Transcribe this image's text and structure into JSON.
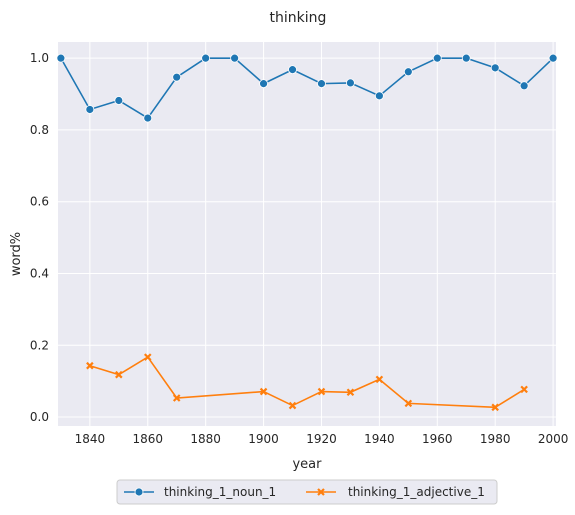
{
  "chart_data": {
    "type": "line",
    "title": "thinking",
    "xlabel": "year",
    "ylabel": "word%",
    "xlim": [
      1829,
      2001
    ],
    "ylim": [
      -0.025,
      1.045
    ],
    "xticks": [
      "1840",
      "1860",
      "1880",
      "1900",
      "1920",
      "1940",
      "1960",
      "1980",
      "2000"
    ],
    "yticks": [
      "0.0",
      "0.2",
      "0.4",
      "0.6",
      "0.8",
      "1.0"
    ],
    "grid": true,
    "legend_position": "bottom-center",
    "series": [
      {
        "name": "thinking_1_noun_1",
        "color": "#1f77b4",
        "marker": "circle",
        "x": [
          1830,
          1840,
          1850,
          1860,
          1870,
          1880,
          1890,
          1900,
          1910,
          1920,
          1930,
          1940,
          1950,
          1960,
          1970,
          1980,
          1990,
          2000
        ],
        "y": [
          1.0,
          0.857,
          0.882,
          0.833,
          0.947,
          1.0,
          1.0,
          0.929,
          0.968,
          0.929,
          0.931,
          0.895,
          0.962,
          1.0,
          1.0,
          0.973,
          0.923,
          1.0
        ]
      },
      {
        "name": "thinking_1_adjective_1",
        "color": "#ff7f0e",
        "marker": "x",
        "x": [
          1840,
          1850,
          1860,
          1870,
          1900,
          1910,
          1920,
          1930,
          1940,
          1950,
          1980,
          1990
        ],
        "y": [
          0.143,
          0.118,
          0.167,
          0.053,
          0.071,
          0.032,
          0.071,
          0.069,
          0.105,
          0.038,
          0.027,
          0.077
        ]
      }
    ]
  }
}
